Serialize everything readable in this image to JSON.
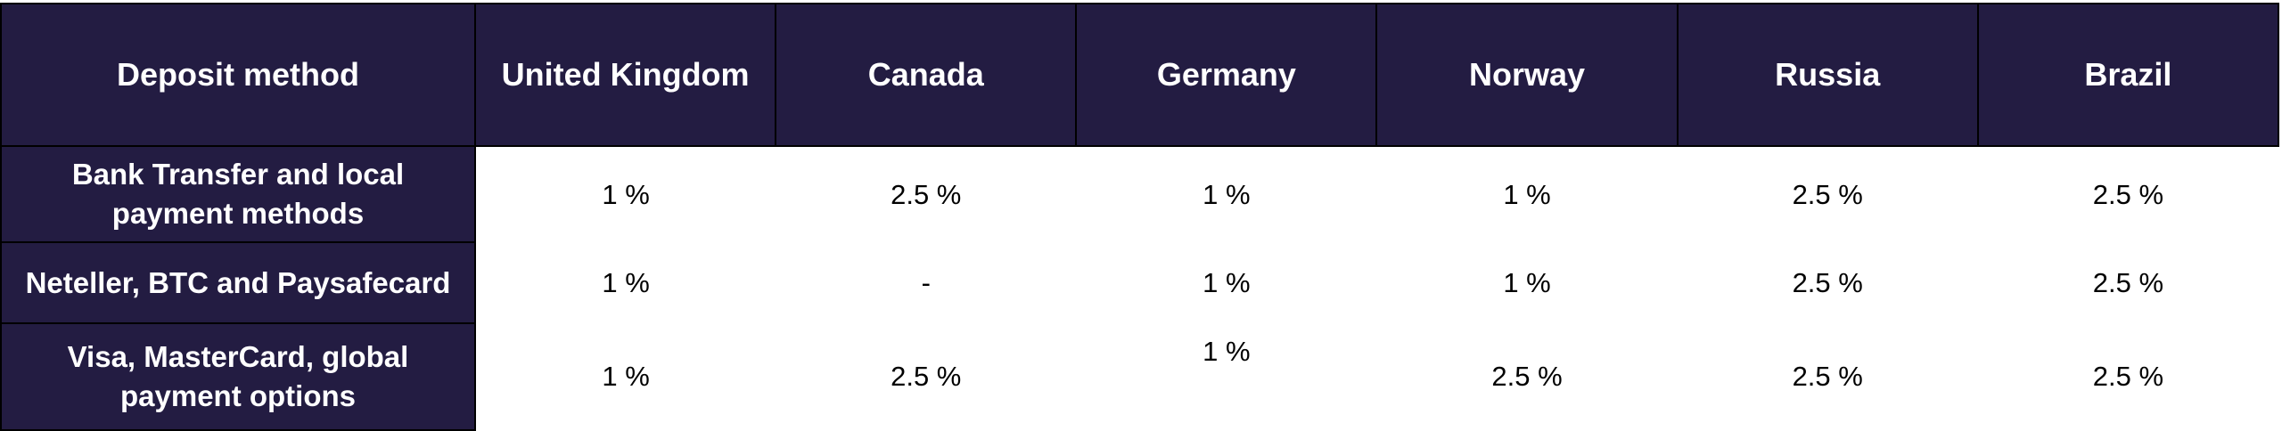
{
  "table": {
    "header": [
      "Deposit method",
      "United Kingdom",
      "Canada",
      "Germany",
      "Norway",
      "Russia",
      "Brazil"
    ],
    "rows": [
      [
        "Bank Transfer and local payment methods",
        "1 %",
        "2.5 %",
        "1 %",
        "1 %",
        "2.5 %",
        "2.5 %"
      ],
      [
        "Neteller, BTC and Paysafecard",
        "1 %",
        "-",
        "1 %",
        "1 %",
        "2.5 %",
        "2.5 %"
      ],
      [
        "Visa, MasterCard, global payment options",
        "1 %",
        "2.5 %",
        "1 %",
        "2.5 %",
        "2.5 %",
        "2.5 %"
      ]
    ]
  }
}
